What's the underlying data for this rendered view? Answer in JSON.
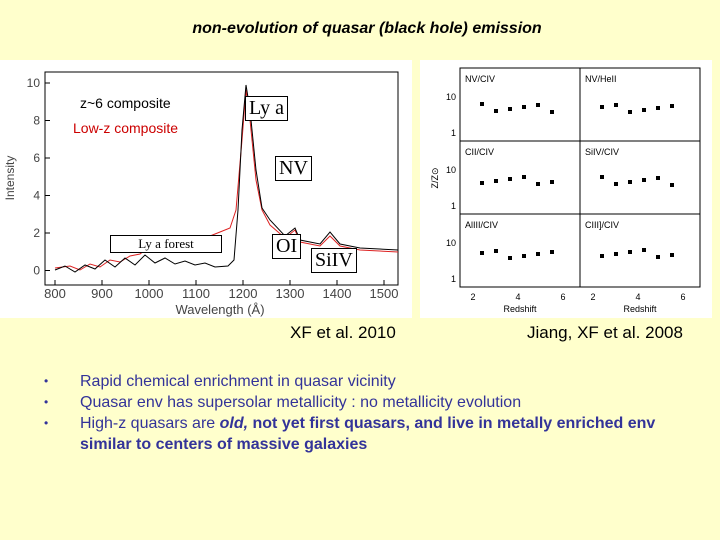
{
  "header": {
    "title": "non-evolution of quasar (black hole) emission"
  },
  "left_figure": {
    "y_label": "Intensity",
    "y_ticks": [
      "10",
      "8",
      "6",
      "4",
      "2",
      "0"
    ],
    "x_label": "Wavelength (Å)",
    "x_ticks": [
      "800",
      "900",
      "1000",
      "1100",
      "1200",
      "1300",
      "1400",
      "1500"
    ],
    "legend": [
      "z~6 composite",
      "Low-z composite"
    ],
    "annotations": {
      "lya": "Ly a",
      "nv": "NV",
      "forest": "Ly a forest",
      "oi": "OI",
      "siiv": "SiIV"
    },
    "caption": "XF et al. 2010"
  },
  "right_figure": {
    "panels": [
      "NV/CIV",
      "NV/HeII",
      "CII/CIV",
      "SiIV/CIV",
      "AlIII/CIV",
      "CIII]/CIV"
    ],
    "y_label": "Z/Z⊙",
    "y_ticks": [
      "10",
      "1"
    ],
    "x_label": "Redshift",
    "x_ticks": [
      "2",
      "4",
      "6"
    ],
    "caption": "Jiang, XF et al. 2008"
  },
  "bullets": [
    [
      "Rapid chemical enrichment in quasar vicinity"
    ],
    [
      "Quasar env has supersolar metallicity : no metallicity evolution"
    ],
    [
      "High-z quasars are ",
      "old,",
      " not yet first quasars, and live in metally enriched env similar to centers of massive galaxies"
    ]
  ]
}
